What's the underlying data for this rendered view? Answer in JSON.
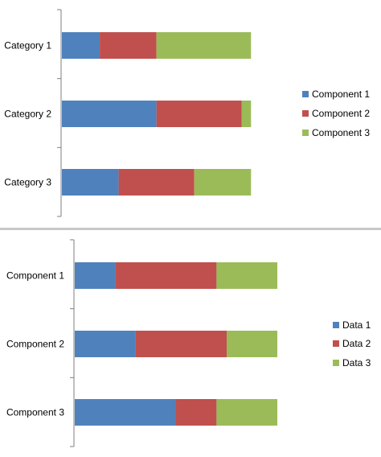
{
  "chart_data": [
    {
      "type": "bar",
      "orientation": "horizontal",
      "stacked": true,
      "categories": [
        "Category 1",
        "Category 2",
        "Category 3"
      ],
      "series": [
        {
          "name": "Component 1",
          "values": [
            2,
            5,
            3
          ],
          "color": "#4F81BD"
        },
        {
          "name": "Component 2",
          "values": [
            3,
            4.5,
            4
          ],
          "color": "#C0504D"
        },
        {
          "name": "Component 3",
          "values": [
            5,
            0.5,
            3
          ],
          "color": "#9BBB59"
        }
      ],
      "xlim": [
        0,
        17
      ],
      "grid": false,
      "legend_position": "right"
    },
    {
      "type": "bar",
      "orientation": "horizontal",
      "stacked": true,
      "categories": [
        "Component 1",
        "Component 2",
        "Component 3"
      ],
      "series": [
        {
          "name": "Data 1",
          "values": [
            2,
            3,
            5
          ],
          "color": "#4F81BD"
        },
        {
          "name": "Data 2",
          "values": [
            5,
            4.5,
            2
          ],
          "color": "#C0504D"
        },
        {
          "name": "Data 3",
          "values": [
            3,
            2.5,
            3
          ],
          "color": "#9BBB59"
        }
      ],
      "xlim": [
        0,
        15
      ],
      "grid": false,
      "legend_position": "right"
    }
  ],
  "separator_color": "#C8C8C8",
  "axis_color": "#7F7F7F"
}
